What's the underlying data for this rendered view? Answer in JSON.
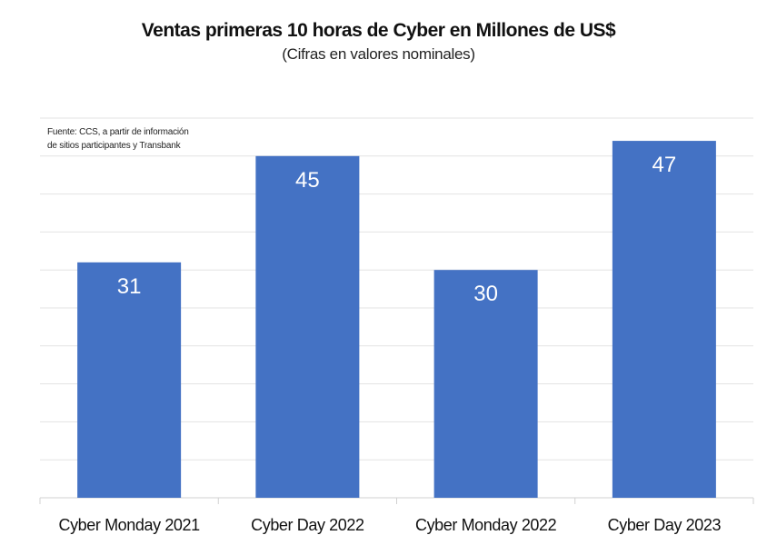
{
  "chart_data": {
    "type": "bar",
    "title": "Ventas primeras 10 horas de Cyber en Millones de US$",
    "subtitle": "(Cifras en valores nominales)",
    "source": [
      "Fuente: CCS, a partir de información",
      "de sitios participantes y Transbank"
    ],
    "categories": [
      "Cyber Monday 2021",
      "Cyber Day 2022",
      "Cyber Monday 2022",
      "Cyber Day 2023"
    ],
    "values": [
      31,
      45,
      30,
      47
    ],
    "data_labels": [
      "31",
      "45",
      "30",
      "47"
    ],
    "xlabel": "",
    "ylabel": "",
    "ylim": [
      0,
      50
    ],
    "grid_step": 5,
    "grid": true,
    "bar_color": "#4472C4",
    "label_color": "#FFFFFF"
  }
}
